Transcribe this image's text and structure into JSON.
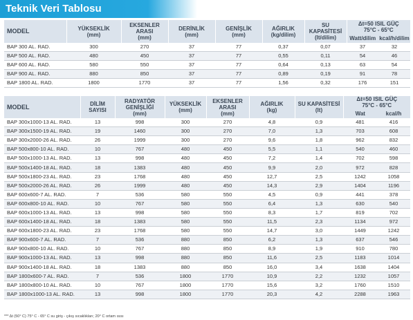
{
  "title": "Teknik Veri Tablosu",
  "table1": {
    "headers": {
      "model": "MODEL",
      "height": "YÜKSEKLİK",
      "height_unit": "(mm)",
      "axis": "EKSENLER ARASI",
      "axis_unit": "(mm)",
      "depth": "DERİNLİK",
      "depth_unit": "(mm)",
      "width": "GENİŞLİK",
      "width_unit": "(mm)",
      "weight": "AĞIRLIK",
      "weight_unit": "(kg/dilim)",
      "water": "SU KAPASİTESİ",
      "water_unit": "(lt/dilim)",
      "power": "Δt=50 ISIL GÜÇ",
      "power_range": "75°C - 65°C",
      "watt_unit": "Watt/dilim",
      "kcal_unit": "kcal/h/dilim"
    },
    "rows": [
      [
        "BAP 300 AL. RAD.",
        "300",
        "270",
        "37",
        "77",
        "0,37",
        "0,07",
        "37",
        "32"
      ],
      [
        "BAP 500 AL. RAD.",
        "480",
        "450",
        "37",
        "77",
        "0,55",
        "0,11",
        "54",
        "46"
      ],
      [
        "BAP 600 AL. RAD.",
        "580",
        "550",
        "37",
        "77",
        "0,64",
        "0,13",
        "63",
        "54"
      ],
      [
        "BAP 900 AL. RAD.",
        "880",
        "850",
        "37",
        "77",
        "0,89",
        "0,19",
        "91",
        "78"
      ],
      [
        "BAP 1800 AL. RAD.",
        "1800",
        "1770",
        "37",
        "77",
        "1,56",
        "0,32",
        "176",
        "151"
      ]
    ]
  },
  "table2": {
    "headers": {
      "model": "MODEL",
      "slices": "DİLİM SAYISI",
      "rad_width": "RADYATÖR GENİŞLİĞİ",
      "rad_width_unit": "(mm)",
      "height": "YÜKSEKLİK",
      "height_unit": "(mm)",
      "axis": "EKSENLER ARASI",
      "axis_unit": "(mm)",
      "weight": "AĞIRLIK",
      "weight_unit": "(kg)",
      "water": "SU KAPASİTESİ",
      "water_unit": "(lt)",
      "power": "Δt=50 ISIL GÜÇ",
      "power_range": "75°C - 65°C",
      "watt_unit": "Wat",
      "kcal_unit": "kcal/h"
    },
    "rows": [
      [
        "BAP 300x1000-13 AL. RAD.",
        "13",
        "998",
        "300",
        "270",
        "4,8",
        "0,9",
        "481",
        "416"
      ],
      [
        "BAP 300x1500-19 AL. RAD.",
        "19",
        "1460",
        "300",
        "270",
        "7,0",
        "1,3",
        "703",
        "608"
      ],
      [
        "BAP 300x2000-26 AL. RAD.",
        "26",
        "1999",
        "300",
        "270",
        "9,6",
        "1,8",
        "962",
        "832"
      ],
      [
        "BAP 500x800-10 AL. RAD.",
        "10",
        "767",
        "480",
        "450",
        "5,5",
        "1,1",
        "540",
        "460"
      ],
      [
        "BAP 500x1000-13 AL. RAD.",
        "13",
        "998",
        "480",
        "450",
        "7,2",
        "1,4",
        "702",
        "598"
      ],
      [
        "BAP 500x1400-18 AL. RAD.",
        "18",
        "1383",
        "480",
        "450",
        "9,9",
        "2,0",
        "972",
        "828"
      ],
      [
        "BAP 500x1800-23 AL. RAD.",
        "23",
        "1768",
        "480",
        "450",
        "12,7",
        "2,5",
        "1242",
        "1058"
      ],
      [
        "BAP 500x2000-26 AL. RAD.",
        "26",
        "1999",
        "480",
        "450",
        "14,3",
        "2,9",
        "1404",
        "1196"
      ],
      [
        "BAP 600x600-7 AL. RAD.",
        "7",
        "536",
        "580",
        "550",
        "4,5",
        "0,9",
        "441",
        "378"
      ],
      [
        "BAP 600x800-10 AL. RAD.",
        "10",
        "767",
        "580",
        "550",
        "6,4",
        "1,3",
        "630",
        "540"
      ],
      [
        "BAP 600x1000-13 AL. RAD.",
        "13",
        "998",
        "580",
        "550",
        "8,3",
        "1,7",
        "819",
        "702"
      ],
      [
        "BAP 600x1400-18 AL. RAD.",
        "18",
        "1383",
        "580",
        "550",
        "11,5",
        "2,3",
        "1134",
        "972"
      ],
      [
        "BAP 600x1800-23 AL. RAD.",
        "23",
        "1768",
        "580",
        "550",
        "14,7",
        "3,0",
        "1449",
        "1242"
      ],
      [
        "BAP 900x600-7 AL. RAD.",
        "7",
        "536",
        "880",
        "850",
        "6,2",
        "1,3",
        "637",
        "546"
      ],
      [
        "BAP 900x800-10 AL. RAD.",
        "10",
        "767",
        "880",
        "850",
        "8,9",
        "1,9",
        "910",
        "780"
      ],
      [
        "BAP 900x1000-13 AL. RAD.",
        "13",
        "998",
        "880",
        "850",
        "11,6",
        "2,5",
        "1183",
        "1014"
      ],
      [
        "BAP 900x1400-18 AL. RAD.",
        "18",
        "1383",
        "880",
        "850",
        "16,0",
        "3,4",
        "1638",
        "1404"
      ],
      [
        "BAP 1800x600-7 AL. RAD.",
        "7",
        "536",
        "1800",
        "1770",
        "10,9",
        "2,2",
        "1232",
        "1057"
      ],
      [
        "BAP 1800x800-10 AL. RAD.",
        "10",
        "767",
        "1800",
        "1770",
        "15,6",
        "3,2",
        "1760",
        "1510"
      ],
      [
        "BAP 1800x1000-13 AL. RAD.",
        "13",
        "998",
        "1800",
        "1770",
        "20,3",
        "4,2",
        "2288",
        "1963"
      ]
    ]
  },
  "footnote": "*** Δt (50° C) 75° C - 65° C su giriş - çıkış sıcaklıkları; 20° C ortam ısısı",
  "colors": {
    "title_bar": "#1d9fd6",
    "header_bg": "#dbe3ec",
    "alt_row_bg": "#eef1f5"
  }
}
